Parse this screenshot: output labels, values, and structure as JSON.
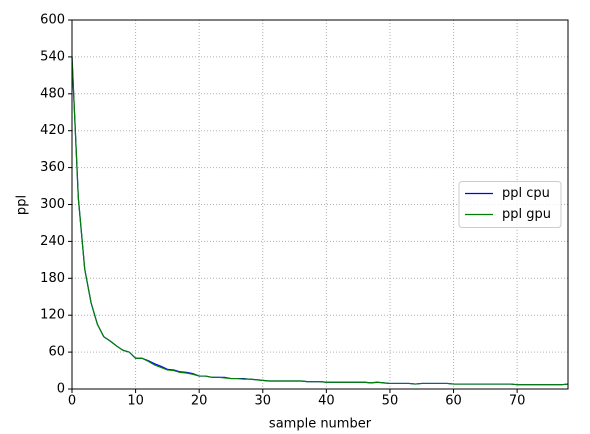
{
  "chart_data": {
    "type": "line",
    "xlabel": "sample number",
    "ylabel": "ppl",
    "x": [
      0,
      1,
      2,
      3,
      4,
      5,
      6,
      7,
      8,
      9,
      10,
      11,
      12,
      13,
      14,
      15,
      16,
      17,
      18,
      19,
      20,
      21,
      22,
      23,
      24,
      25,
      26,
      27,
      28,
      29,
      30,
      31,
      32,
      33,
      34,
      35,
      36,
      37,
      38,
      39,
      40,
      41,
      42,
      43,
      44,
      45,
      46,
      47,
      48,
      49,
      50,
      51,
      52,
      53,
      54,
      55,
      56,
      57,
      58,
      59,
      60,
      61,
      62,
      63,
      64,
      65,
      66,
      67,
      68,
      69,
      70,
      71,
      72,
      73,
      74,
      75,
      76,
      77,
      78
    ],
    "series": [
      {
        "name": "ppl cpu",
        "color": "#0000ff",
        "values": [
          540,
          310,
          195,
          140,
          105,
          85,
          78,
          70,
          63,
          60,
          50,
          50,
          46,
          41,
          37,
          32,
          31,
          28,
          27,
          25,
          21,
          21,
          19,
          19,
          19,
          17,
          17,
          17,
          16,
          15,
          14,
          13,
          13,
          13,
          13,
          13,
          13,
          12,
          12,
          12,
          11,
          11,
          11,
          11,
          11,
          11,
          11,
          10,
          11,
          10,
          9,
          9,
          9,
          9,
          8,
          9,
          9,
          9,
          9,
          9,
          8,
          8,
          8,
          8,
          8,
          8,
          8,
          8,
          8,
          8,
          7,
          7,
          7,
          7,
          7,
          7,
          7,
          7,
          8
        ]
      },
      {
        "name": "ppl gpu",
        "color": "#008000",
        "values": [
          540,
          310,
          195,
          140,
          105,
          85,
          78,
          70,
          63,
          60,
          50,
          50,
          45,
          39,
          35,
          31,
          30,
          27,
          26,
          24,
          21,
          21,
          19,
          19,
          18,
          17,
          17,
          16,
          16,
          15,
          14,
          13,
          13,
          13,
          13,
          13,
          13,
          12,
          12,
          12,
          11,
          11,
          11,
          11,
          11,
          11,
          11,
          10,
          11,
          10,
          9,
          9,
          9,
          9,
          8,
          9,
          9,
          9,
          9,
          9,
          8,
          8,
          8,
          8,
          8,
          8,
          8,
          8,
          8,
          8,
          7,
          7,
          7,
          7,
          7,
          7,
          7,
          7,
          8
        ]
      }
    ],
    "xlim": [
      0,
      78
    ],
    "ylim": [
      0,
      600
    ],
    "xticks": [
      0,
      10,
      20,
      30,
      40,
      50,
      60,
      70
    ],
    "yticks": [
      0,
      60,
      120,
      180,
      240,
      300,
      360,
      420,
      480,
      540,
      600
    ],
    "grid": true,
    "legend": "right"
  }
}
